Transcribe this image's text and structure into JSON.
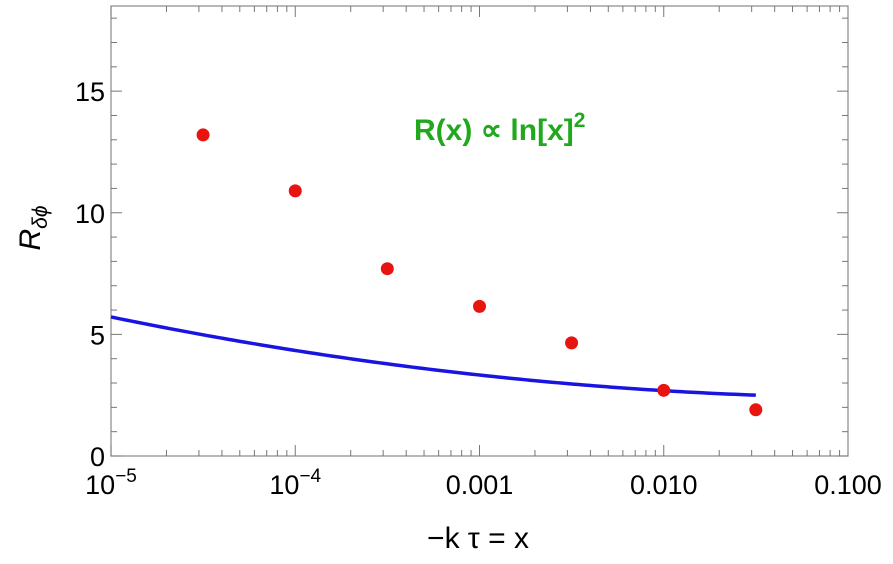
{
  "chart_data": {
    "type": "scatter",
    "x_scale": "log",
    "xlim": [
      1e-05,
      0.1
    ],
    "ylim": [
      0,
      18.5
    ],
    "xlabel": "−k τ = x",
    "ylabel": {
      "main": "R",
      "sub": "δϕ"
    },
    "x_ticks": [
      {
        "value": 1e-05,
        "base": "10",
        "exp": "−5"
      },
      {
        "value": 0.0001,
        "base": "10",
        "exp": "−4"
      },
      {
        "value": 0.001,
        "label": "0.001"
      },
      {
        "value": 0.01,
        "label": "0.010"
      },
      {
        "value": 0.1,
        "label": "0.100"
      }
    ],
    "y_ticks": [
      {
        "value": 0,
        "label": "0"
      },
      {
        "value": 5,
        "label": "5"
      },
      {
        "value": 10,
        "label": "10"
      },
      {
        "value": 15,
        "label": "15"
      }
    ],
    "grid": false,
    "annotation": {
      "text": "R(x) ∝ ln[x]",
      "sup": "2",
      "color": "#22a81f"
    },
    "series": [
      {
        "kind": "points",
        "color": "#e8140f",
        "points": [
          {
            "x": 3.16e-05,
            "y": 13.2
          },
          {
            "x": 0.0001,
            "y": 10.9
          },
          {
            "x": 0.000316,
            "y": 7.7
          },
          {
            "x": 0.001,
            "y": 6.15
          },
          {
            "x": 0.00316,
            "y": 4.65
          },
          {
            "x": 0.01,
            "y": 2.7
          },
          {
            "x": 0.0316,
            "y": 1.9
          }
        ]
      },
      {
        "kind": "fit",
        "color": "#1a14e0",
        "formula": "a*ln(x)^2 + b*ln(x) + c",
        "coefficients": {
          "a": 0.0346,
          "b": 0.119,
          "c": 2.5
        },
        "x_range": [
          1e-05,
          0.0316
        ]
      }
    ]
  }
}
